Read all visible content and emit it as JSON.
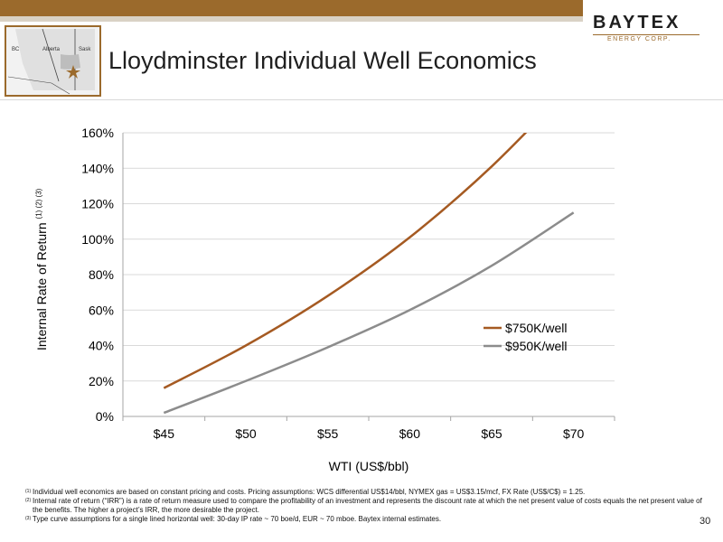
{
  "header": {
    "title": "Lloydminster Individual Well Economics",
    "logo_text": "BAYTEX",
    "logo_subtext": "ENERGY CORP.",
    "map_labels": [
      "BC",
      "Alberta",
      "Sask"
    ]
  },
  "colors": {
    "brand": "#9b6a2c",
    "series_750": "#a55a22",
    "series_950": "#8c8c8c"
  },
  "chart_data": {
    "type": "line",
    "title": "",
    "xlabel": "WTI (US$/bbl)",
    "ylabel": "Internal Rate of Return",
    "ylabel_superscripts": "(1) (2) (3)",
    "x": [
      "$45",
      "$50",
      "$55",
      "$60",
      "$65",
      "$70"
    ],
    "x_values": [
      45,
      50,
      55,
      60,
      65,
      70
    ],
    "ylim": [
      0,
      160
    ],
    "yticks": [
      "0%",
      "20%",
      "40%",
      "60%",
      "80%",
      "100%",
      "120%",
      "140%",
      "160%"
    ],
    "ytick_values": [
      0,
      20,
      40,
      60,
      80,
      100,
      120,
      140,
      160
    ],
    "grid": "horizontal",
    "legend_position": "right",
    "series": [
      {
        "name": "$750K/well",
        "values": [
          16,
          40,
          68,
          101,
          141,
          188
        ]
      },
      {
        "name": "$950K/well",
        "values": [
          2,
          20,
          39,
          60,
          85,
          115
        ]
      }
    ]
  },
  "footnotes": [
    {
      "mark": "(1)",
      "text": "Individual well economics are based on constant pricing and costs. Pricing assumptions:  WCS differential US$14/bbl, NYMEX gas = US$3.15/mcf, FX Rate (US$/C$) = 1.25."
    },
    {
      "mark": "(2)",
      "text": "Internal rate of return (“IRR”) is a rate of return measure used to compare the profitability of an investment and represents the discount rate at which the net present value of costs equals the net present value of the benefits. The higher a project’s IRR, the more desirable the project."
    },
    {
      "mark": "(3)",
      "text": "Type curve assumptions for a single lined horizontal well: 30-day IP rate ~ 70 boe/d, EUR ~ 70 mboe. Baytex internal estimates."
    }
  ],
  "page_number": "30"
}
